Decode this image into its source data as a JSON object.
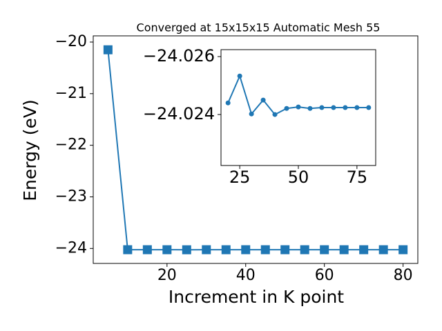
{
  "chart_data": [
    {
      "type": "line",
      "title": "Converged at 15x15x15 Automatic Mesh 55",
      "xlabel": "Increment in K point",
      "ylabel": "Energy (eV)",
      "marker": "square",
      "color": "#1f77b4",
      "x": [
        5,
        10,
        15,
        20,
        25,
        30,
        35,
        40,
        45,
        50,
        55,
        60,
        65,
        70,
        75,
        80
      ],
      "values": [
        -20.15,
        -24.024,
        -24.024,
        -24.0244,
        -24.02533,
        -24.02402,
        -24.0245,
        -24.024,
        -24.02421,
        -24.02426,
        -24.02421,
        -24.02424,
        -24.02424,
        -24.02424,
        -24.02424,
        -24.02424
      ],
      "xlim": [
        1.25,
        83.75
      ],
      "ylim": [
        -24.29,
        -19.88
      ],
      "xticks": [
        20,
        40,
        60,
        80
      ],
      "yticks": [
        -24,
        -23,
        -22,
        -21,
        -20
      ]
    },
    {
      "type": "line",
      "marker": "circle",
      "color": "#1f77b4",
      "x": [
        20,
        25,
        30,
        35,
        40,
        45,
        50,
        55,
        60,
        65,
        70,
        75,
        80
      ],
      "values": [
        -24.0244,
        -24.02533,
        -24.02402,
        -24.0245,
        -24.024,
        -24.02421,
        -24.02426,
        -24.02421,
        -24.02424,
        -24.02424,
        -24.02424,
        -24.02424,
        -24.02424
      ],
      "xlim": [
        17,
        83
      ],
      "ylim": [
        -24.02224,
        -24.02624
      ],
      "xticks": [
        25,
        50,
        75
      ],
      "yticks": [
        -24.026,
        -24.024
      ]
    }
  ]
}
